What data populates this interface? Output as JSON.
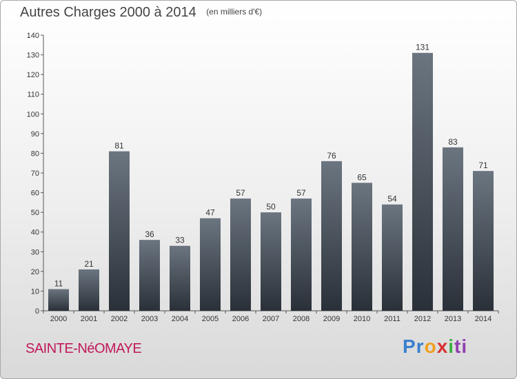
{
  "chart_data": {
    "type": "bar",
    "title": "Autres Charges 2000 à 2014",
    "unit_note": "(en milliers d'€)",
    "categories": [
      "2000",
      "2001",
      "2002",
      "2003",
      "2004",
      "2005",
      "2006",
      "2007",
      "2008",
      "2009",
      "2010",
      "2011",
      "2012",
      "2013",
      "2014"
    ],
    "values": [
      11,
      21,
      81,
      36,
      33,
      47,
      57,
      50,
      57,
      76,
      65,
      54,
      131,
      83,
      71
    ],
    "ylim": [
      0,
      140
    ],
    "yticks": [
      0,
      10,
      20,
      30,
      40,
      50,
      60,
      70,
      80,
      90,
      100,
      110,
      120,
      130,
      140
    ],
    "grid": false,
    "bar_color_top": "#6b7580",
    "bar_color_bottom": "#2a3038"
  },
  "commune": "SAINTE-NéOMAYE",
  "logo": {
    "letters": [
      "Pr",
      "o",
      "x",
      "i",
      "ti"
    ]
  }
}
